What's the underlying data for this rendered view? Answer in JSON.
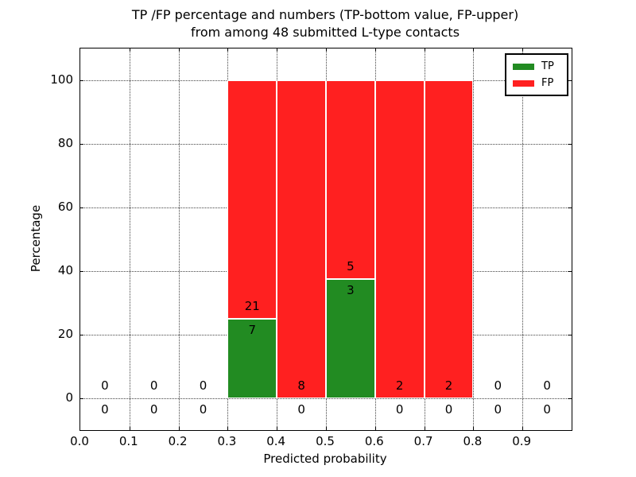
{
  "figure": {
    "title_line1": "TP /FP percentage and numbers (TP-bottom value, FP-upper)",
    "title_line2": "from among 48 submitted L-type contacts"
  },
  "chart_data": {
    "type": "bar",
    "subtype": "stacked-percentage",
    "title": "TP /FP percentage and numbers (TP-bottom value, FP-upper) from among 48 submitted L-type contacts",
    "xlabel": "Predicted probability",
    "ylabel": "Percentage",
    "xlim": [
      0.0,
      1.0
    ],
    "ylim": [
      -10,
      110
    ],
    "x_tick_values": [
      0.0,
      0.1,
      0.2,
      0.3,
      0.4,
      0.5,
      0.6,
      0.7,
      0.8,
      0.9
    ],
    "x_tick_labels": [
      "0.0",
      "0.1",
      "0.2",
      "0.3",
      "0.4",
      "0.5",
      "0.6",
      "0.7",
      "0.8",
      "0.9"
    ],
    "y_tick_values": [
      0,
      20,
      40,
      60,
      80,
      100
    ],
    "y_tick_labels": [
      "0",
      "20",
      "40",
      "60",
      "80",
      "100"
    ],
    "grid": true,
    "legend_position": "upper right",
    "total_submitted": 48,
    "bins": [
      {
        "range": [
          0.0,
          0.1
        ],
        "tp": 0,
        "fp": 0,
        "tp_pct": 0,
        "fp_pct": 0
      },
      {
        "range": [
          0.1,
          0.2
        ],
        "tp": 0,
        "fp": 0,
        "tp_pct": 0,
        "fp_pct": 0
      },
      {
        "range": [
          0.2,
          0.3
        ],
        "tp": 0,
        "fp": 0,
        "tp_pct": 0,
        "fp_pct": 0
      },
      {
        "range": [
          0.3,
          0.4
        ],
        "tp": 7,
        "fp": 21,
        "tp_pct": 25,
        "fp_pct": 75
      },
      {
        "range": [
          0.4,
          0.5
        ],
        "tp": 0,
        "fp": 8,
        "tp_pct": 0,
        "fp_pct": 100
      },
      {
        "range": [
          0.5,
          0.6
        ],
        "tp": 3,
        "fp": 5,
        "tp_pct": 37.5,
        "fp_pct": 62.5
      },
      {
        "range": [
          0.6,
          0.7
        ],
        "tp": 0,
        "fp": 2,
        "tp_pct": 0,
        "fp_pct": 100
      },
      {
        "range": [
          0.7,
          0.8
        ],
        "tp": 0,
        "fp": 2,
        "tp_pct": 0,
        "fp_pct": 100
      },
      {
        "range": [
          0.8,
          0.9
        ],
        "tp": 0,
        "fp": 0,
        "tp_pct": 0,
        "fp_pct": 0
      },
      {
        "range": [
          0.9,
          1.0
        ],
        "tp": 0,
        "fp": 0,
        "tp_pct": 0,
        "fp_pct": 0
      }
    ],
    "legend": [
      {
        "label": "TP",
        "color": "#228b22"
      },
      {
        "label": "FP",
        "color": "#ff2020"
      }
    ]
  }
}
